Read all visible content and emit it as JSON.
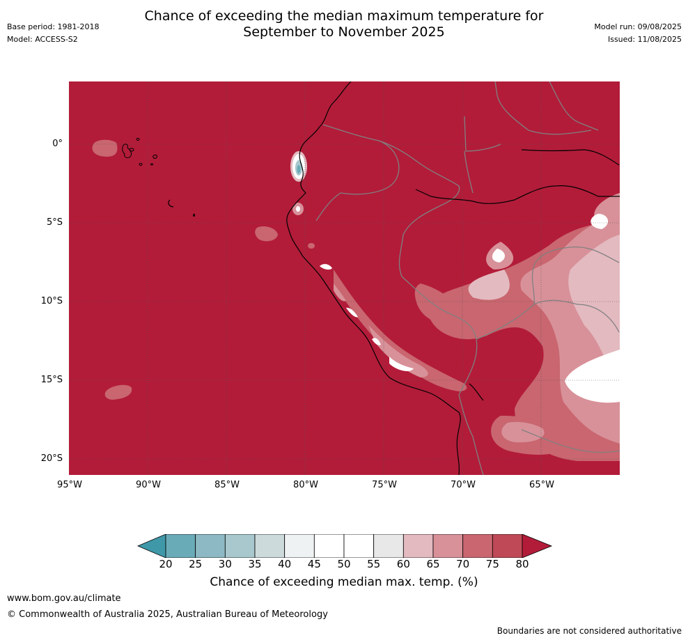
{
  "header": {
    "title_line1": "Chance of exceeding the median maximum temperature for",
    "title_line2": "September to November 2025",
    "base_period": "Base period: 1981-2018",
    "model": "Model: ACCESS-S2",
    "model_run": "Model run: 09/08/2025",
    "issued": "Issued: 11/08/2025"
  },
  "map": {
    "lat_labels": [
      "0°",
      "5°S",
      "10°S",
      "15°S",
      "20°S"
    ],
    "lon_labels": [
      "95°W",
      "90°W",
      "85°W",
      "80°W",
      "75°W",
      "70°W",
      "65°W"
    ],
    "colors": {
      "ocean_fill": "#b21c39",
      "coast": "#000000",
      "border": "#808080",
      "grid": "#555555"
    }
  },
  "colorbar": {
    "ticks": [
      "20",
      "25",
      "30",
      "35",
      "40",
      "45",
      "50",
      "55",
      "60",
      "65",
      "70",
      "75",
      "80"
    ],
    "colors": [
      "#3f98a8",
      "#6aabb8",
      "#8cb9c4",
      "#a8c8cd",
      "#cddadb",
      "#eef2f3",
      "#ffffff",
      "#ffffff",
      "#e8e8e8",
      "#e3bac0",
      "#d89199",
      "#c9666f",
      "#bf4956",
      "#b21c39"
    ],
    "label": "Chance of exceeding median max. temp. (%)"
  },
  "footer": {
    "url": "www.bom.gov.au/climate",
    "copyright": "© Commonwealth of Australia 2025, Australian Bureau of Meteorology",
    "disclaimer": "Boundaries are not considered authoritative"
  }
}
